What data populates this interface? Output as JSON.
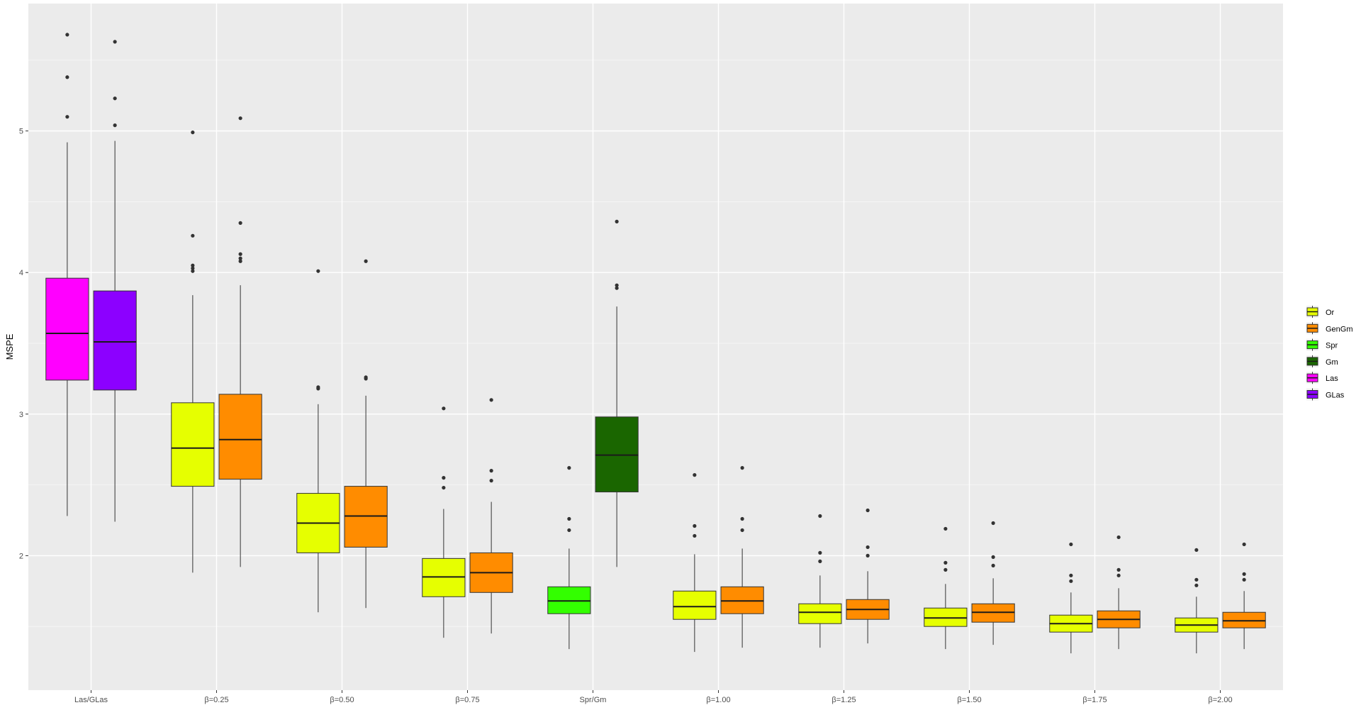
{
  "chart_data": {
    "type": "boxplot",
    "title": "",
    "xlabel": "",
    "ylabel": "MSPE",
    "ylim": [
      1.05,
      5.9
    ],
    "yticks": [
      2,
      3,
      4,
      5
    ],
    "grid": true,
    "legend_position": "right",
    "categories": [
      "Las/GLas",
      "β=0.25",
      "β=0.50",
      "β=0.75",
      "Spr/Gm",
      "β=1.00",
      "β=1.25",
      "β=1.50",
      "β=1.75",
      "β=2.00"
    ],
    "legend": [
      {
        "label": "Or",
        "color": "#e6ff00"
      },
      {
        "label": "GenGm",
        "color": "#ff8c00"
      },
      {
        "label": "Spr",
        "color": "#33ff00"
      },
      {
        "label": "Gm",
        "color": "#1a6600"
      },
      {
        "label": "Las",
        "color": "#ff00ff"
      },
      {
        "label": "GLas",
        "color": "#8c00ff"
      }
    ],
    "series": [
      {
        "name": "Las",
        "category": "Las/GLas",
        "slot": 0,
        "color": "#ff00ff",
        "whisker_low": 2.28,
        "q1": 3.24,
        "median": 3.57,
        "q3": 3.96,
        "whisker_high": 4.92,
        "outliers": [
          5.1,
          5.38,
          5.68
        ]
      },
      {
        "name": "GLas",
        "category": "Las/GLas",
        "slot": 1,
        "color": "#8c00ff",
        "whisker_low": 2.24,
        "q1": 3.17,
        "median": 3.51,
        "q3": 3.87,
        "whisker_high": 4.93,
        "outliers": [
          5.04,
          5.23,
          5.63
        ]
      },
      {
        "name": "Or",
        "category": "β=0.25",
        "slot": 0,
        "color": "#e6ff00",
        "whisker_low": 1.88,
        "q1": 2.49,
        "median": 2.76,
        "q3": 3.08,
        "whisker_high": 3.84,
        "outliers": [
          4.01,
          4.03,
          4.05,
          4.26,
          4.99
        ]
      },
      {
        "name": "GenGm",
        "category": "β=0.25",
        "slot": 1,
        "color": "#ff8c00",
        "whisker_low": 1.92,
        "q1": 2.54,
        "median": 2.82,
        "q3": 3.14,
        "whisker_high": 3.91,
        "outliers": [
          4.08,
          4.1,
          4.13,
          4.35,
          5.09
        ]
      },
      {
        "name": "Or",
        "category": "β=0.50",
        "slot": 0,
        "color": "#e6ff00",
        "whisker_low": 1.6,
        "q1": 2.02,
        "median": 2.23,
        "q3": 2.44,
        "whisker_high": 3.07,
        "outliers": [
          3.18,
          3.19,
          4.01
        ]
      },
      {
        "name": "GenGm",
        "category": "β=0.50",
        "slot": 1,
        "color": "#ff8c00",
        "whisker_low": 1.63,
        "q1": 2.06,
        "median": 2.28,
        "q3": 2.49,
        "whisker_high": 3.13,
        "outliers": [
          3.25,
          3.26,
          4.08
        ]
      },
      {
        "name": "Or",
        "category": "β=0.75",
        "slot": 0,
        "color": "#e6ff00",
        "whisker_low": 1.42,
        "q1": 1.71,
        "median": 1.85,
        "q3": 1.98,
        "whisker_high": 2.33,
        "outliers": [
          2.48,
          2.55,
          3.04
        ]
      },
      {
        "name": "GenGm",
        "category": "β=0.75",
        "slot": 1,
        "color": "#ff8c00",
        "whisker_low": 1.45,
        "q1": 1.74,
        "median": 1.88,
        "q3": 2.02,
        "whisker_high": 2.38,
        "outliers": [
          2.53,
          2.6,
          3.1
        ]
      },
      {
        "name": "Spr",
        "category": "Spr/Gm",
        "slot": 0,
        "color": "#33ff00",
        "whisker_low": 1.34,
        "q1": 1.59,
        "median": 1.68,
        "q3": 1.78,
        "whisker_high": 2.05,
        "outliers": [
          2.18,
          2.26,
          2.62
        ]
      },
      {
        "name": "Gm",
        "category": "Spr/Gm",
        "slot": 1,
        "color": "#1a6600",
        "whisker_low": 1.92,
        "q1": 2.45,
        "median": 2.71,
        "q3": 2.98,
        "whisker_high": 3.76,
        "outliers": [
          3.89,
          3.91,
          4.36
        ]
      },
      {
        "name": "Or",
        "category": "β=1.00",
        "slot": 0,
        "color": "#e6ff00",
        "whisker_low": 1.32,
        "q1": 1.55,
        "median": 1.64,
        "q3": 1.75,
        "whisker_high": 2.01,
        "outliers": [
          2.14,
          2.21,
          2.57
        ]
      },
      {
        "name": "GenGm",
        "category": "β=1.00",
        "slot": 1,
        "color": "#ff8c00",
        "whisker_low": 1.35,
        "q1": 1.59,
        "median": 1.68,
        "q3": 1.78,
        "whisker_high": 2.05,
        "outliers": [
          2.18,
          2.26,
          2.62
        ]
      },
      {
        "name": "Or",
        "category": "β=1.25",
        "slot": 0,
        "color": "#e6ff00",
        "whisker_low": 1.35,
        "q1": 1.52,
        "median": 1.6,
        "q3": 1.66,
        "whisker_high": 1.86,
        "outliers": [
          1.96,
          2.02,
          2.28
        ]
      },
      {
        "name": "GenGm",
        "category": "β=1.25",
        "slot": 1,
        "color": "#ff8c00",
        "whisker_low": 1.38,
        "q1": 1.55,
        "median": 1.62,
        "q3": 1.69,
        "whisker_high": 1.89,
        "outliers": [
          2.0,
          2.06,
          2.32
        ]
      },
      {
        "name": "Or",
        "category": "β=1.50",
        "slot": 0,
        "color": "#e6ff00",
        "whisker_low": 1.34,
        "q1": 1.5,
        "median": 1.56,
        "q3": 1.63,
        "whisker_high": 1.8,
        "outliers": [
          1.9,
          1.95,
          2.19
        ]
      },
      {
        "name": "GenGm",
        "category": "β=1.50",
        "slot": 1,
        "color": "#ff8c00",
        "whisker_low": 1.37,
        "q1": 1.53,
        "median": 1.6,
        "q3": 1.66,
        "whisker_high": 1.84,
        "outliers": [
          1.93,
          1.99,
          2.23
        ]
      },
      {
        "name": "Or",
        "category": "β=1.75",
        "slot": 0,
        "color": "#e6ff00",
        "whisker_low": 1.31,
        "q1": 1.46,
        "median": 1.52,
        "q3": 1.58,
        "whisker_high": 1.74,
        "outliers": [
          1.82,
          1.86,
          2.08
        ]
      },
      {
        "name": "GenGm",
        "category": "β=1.75",
        "slot": 1,
        "color": "#ff8c00",
        "whisker_low": 1.34,
        "q1": 1.49,
        "median": 1.55,
        "q3": 1.61,
        "whisker_high": 1.77,
        "outliers": [
          1.86,
          1.9,
          2.13
        ]
      },
      {
        "name": "Or",
        "category": "β=2.00",
        "slot": 0,
        "color": "#e6ff00",
        "whisker_low": 1.31,
        "q1": 1.46,
        "median": 1.51,
        "q3": 1.56,
        "whisker_high": 1.71,
        "outliers": [
          1.79,
          1.83,
          2.04
        ]
      },
      {
        "name": "GenGm",
        "category": "β=2.00",
        "slot": 1,
        "color": "#ff8c00",
        "whisker_low": 1.34,
        "q1": 1.49,
        "median": 1.54,
        "q3": 1.6,
        "whisker_high": 1.75,
        "outliers": [
          1.83,
          1.87,
          2.08
        ]
      }
    ]
  }
}
